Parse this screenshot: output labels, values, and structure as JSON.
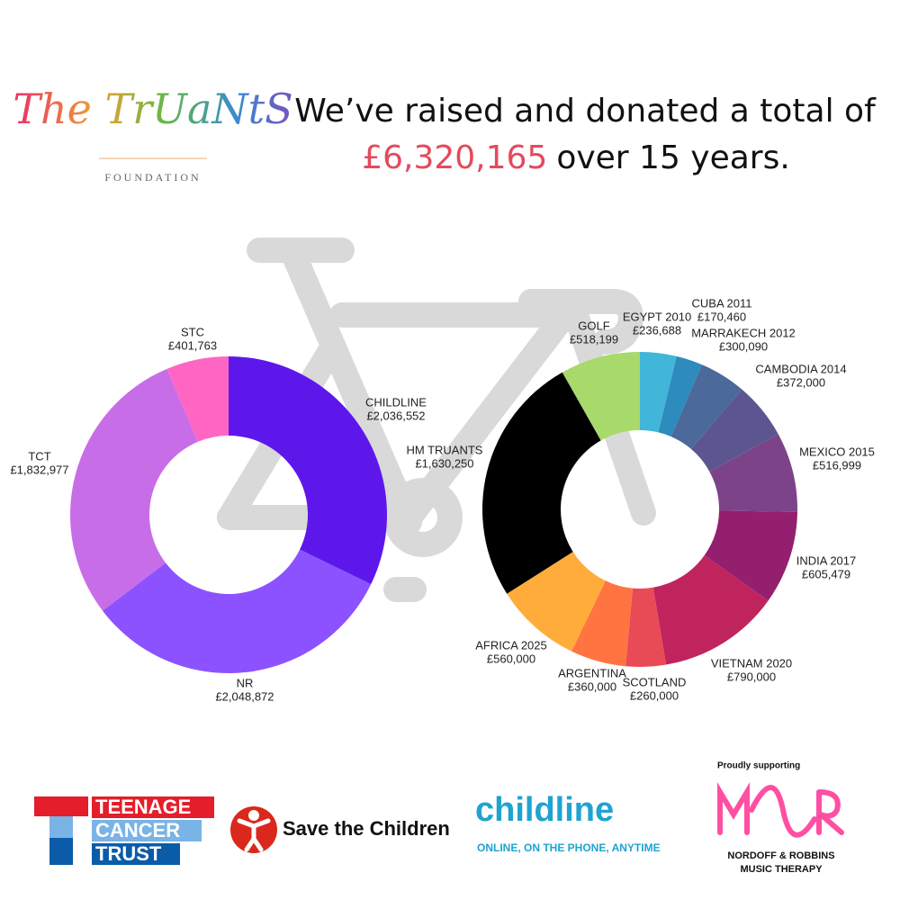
{
  "header": {
    "line1": "We’ve raised and donated a total of",
    "total": "£6,320,165",
    "line2": "over 15 years."
  },
  "logos": {
    "truants": "The TrUaNtS",
    "truants_sub": "FOUNDATION",
    "tct": [
      "TEENAGE",
      "CANCER",
      "TRUST"
    ],
    "stc": "Save the Children",
    "childline": "childline",
    "childline_sub": "ONLINE, ON THE PHONE, ANYTIME",
    "nr_head": "Proudly supporting",
    "nr": [
      "NORDOFF & ROBBINS",
      "MUSIC THERAPY"
    ]
  },
  "chart_data": [
    {
      "type": "donut",
      "categories": [
        "CHILDLINE",
        "NR",
        "TCT",
        "STC"
      ],
      "values": [
        2036552,
        2048872,
        1832977,
        401763
      ],
      "value_labels": [
        "£2,036,552",
        "£2,048,872",
        "£1,832,977",
        "£401,763"
      ],
      "colors": [
        "#5e17eb",
        "#8c52ff",
        "#c86de8",
        "#ff66c4"
      ]
    },
    {
      "type": "donut",
      "categories": [
        "EGYPT 2010",
        "CUBA 2011",
        "MARRAKECH 2012",
        "CAMBODIA 2014",
        "MEXICO 2015",
        "INDIA 2017",
        "VIETNAM 2020",
        "SCOTLAND",
        "ARGENTINA",
        "AFRICA 2025",
        "HM TRUANTS",
        "GOLF"
      ],
      "values": [
        236688,
        170460,
        300090,
        372000,
        516999,
        605479,
        790000,
        260000,
        360000,
        560000,
        1630250,
        518199
      ],
      "value_labels": [
        "£236,688",
        "£170,460",
        "£300,090",
        "£372,000",
        "£516,999",
        "£605,479",
        "£790,000",
        "£260,000",
        "£360,000",
        "£560,000",
        "£1,630,250",
        "£518,199"
      ],
      "colors": [
        "#41b6d9",
        "#2d8bbd",
        "#4b6a9b",
        "#5c5690",
        "#7c4389",
        "#941f6e",
        "#c0245c",
        "#e84a56",
        "#ff7441",
        "#ffac3a",
        "#000000",
        "#a7d96b"
      ]
    }
  ]
}
